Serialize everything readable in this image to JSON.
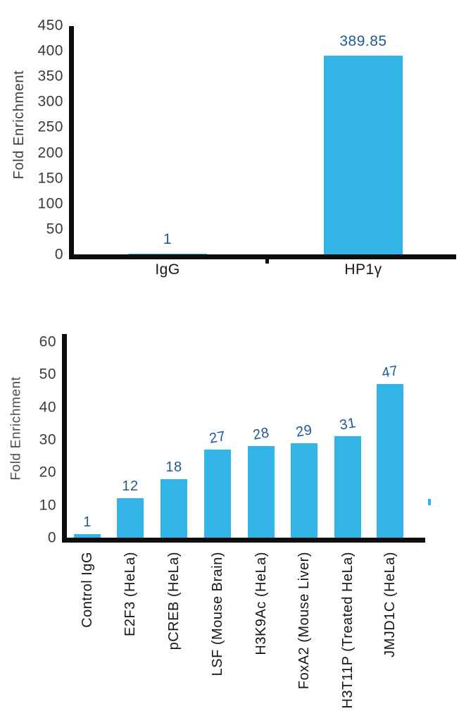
{
  "figure": {
    "background": "#ffffff"
  },
  "colors": {
    "bar_fill": "#33B5E8",
    "value_label": "#1F5B93",
    "axis_line": "#0E0E0E",
    "tick_label": "#3A3A3A",
    "category_label": "#161616"
  },
  "chart_data": [
    {
      "type": "bar",
      "title": "",
      "ylabel": "Fold Enrichment",
      "xlabel": "",
      "categories": [
        "IgG",
        "HP1γ"
      ],
      "values": [
        1,
        389.85
      ],
      "value_labels": [
        "1",
        "389.85"
      ],
      "ylim": [
        0,
        450
      ],
      "yticks": [
        0,
        50,
        100,
        150,
        200,
        250,
        300,
        350,
        400,
        450
      ],
      "grid": false,
      "legend": false,
      "value_labels_position": "above",
      "bar_color": "#33B5E8"
    },
    {
      "type": "bar",
      "title": "",
      "ylabel": "Fold Enrichment",
      "xlabel": "",
      "categories": [
        "Control IgG",
        "E2F3 (HeLa)",
        "pCREB (HeLa)",
        "LSF (Mouse Brain)",
        "H3K9Ac (HeLa)",
        "FoxA2 (Mouse Liver)",
        "H3T11P (Treated HeLa)",
        "JMJD1C (HeLa)"
      ],
      "values": [
        1,
        12,
        18,
        27,
        28,
        29,
        31,
        47
      ],
      "value_labels": [
        "1",
        "12",
        "18",
        "27",
        "28",
        "29",
        "31",
        "47"
      ],
      "ylim": [
        0,
        60
      ],
      "yticks": [
        0,
        10,
        20,
        30,
        40,
        50,
        60
      ],
      "grid": false,
      "legend": false,
      "x_tick_label_rotation": 90,
      "value_labels_position": "above",
      "bar_color": "#33B5E8"
    }
  ]
}
